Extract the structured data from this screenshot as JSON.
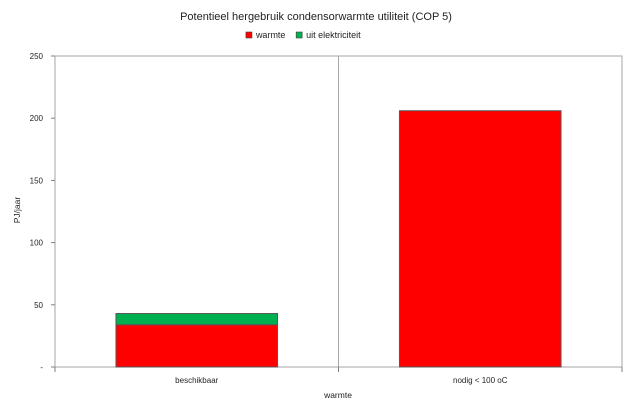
{
  "chart_data": {
    "type": "bar",
    "stacked": true,
    "title": "Potentieel hergebruik condensorwarmte utiliteit (COP 5)",
    "xlabel": "warmte",
    "ylabel": "PJ/jaar",
    "categories": [
      "beschikbaar",
      "nodig < 100 oC"
    ],
    "series": [
      {
        "name": "warmte",
        "values": [
          34,
          206
        ],
        "color": "#ff0000"
      },
      {
        "name": "uit elektriciteit",
        "values": [
          9,
          0
        ],
        "color": "#00b050"
      }
    ],
    "ylim": [
      0,
      250
    ],
    "yticks": [
      {
        "value": 0,
        "label": "-"
      },
      {
        "value": 50,
        "label": "50"
      },
      {
        "value": 100,
        "label": "100"
      },
      {
        "value": 150,
        "label": "150"
      },
      {
        "value": 200,
        "label": "200"
      },
      {
        "value": 250,
        "label": "250"
      }
    ],
    "grid": "vertical-category-separators",
    "legend_position": "top"
  }
}
